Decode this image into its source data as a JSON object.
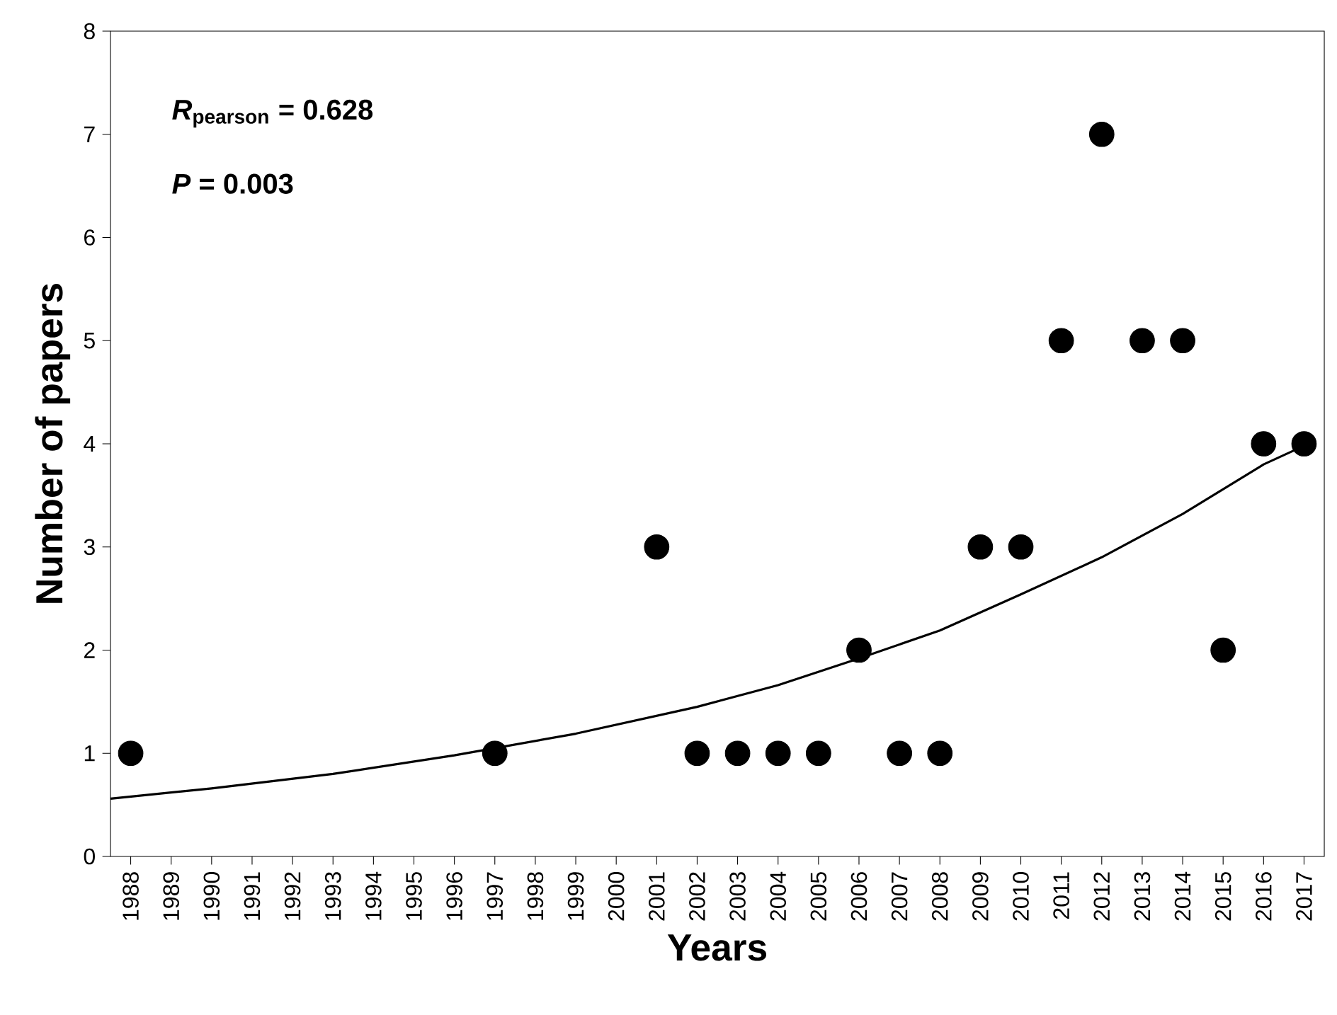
{
  "chart_data": {
    "type": "scatter",
    "xlabel": "Years",
    "ylabel": "Number of papers",
    "annotations": [
      "*R*$_{pearson}$ = 0.628",
      "*P* = 0.003"
    ],
    "xlim": [
      1987.5,
      2017.5
    ],
    "ylim": [
      0,
      8
    ],
    "xticks": [
      1988,
      1989,
      1990,
      1991,
      1992,
      1993,
      1994,
      1995,
      1996,
      1997,
      1998,
      1999,
      2000,
      2001,
      2002,
      2003,
      2004,
      2005,
      2006,
      2007,
      2008,
      2009,
      2010,
      2011,
      2012,
      2013,
      2014,
      2015,
      2016,
      2017
    ],
    "yticks": [
      0,
      1,
      2,
      3,
      4,
      5,
      6,
      7,
      8
    ],
    "series": [
      {
        "color": "#000000",
        "marker": "circle",
        "x": [
          1988,
          1997,
          2001,
          2002,
          2003,
          2004,
          2005,
          2006,
          2007,
          2008,
          2009,
          2010,
          2011,
          2012,
          2013,
          2014,
          2015,
          2016,
          2017
        ],
        "values": [
          1,
          1,
          3,
          1,
          1,
          1,
          1,
          2,
          1,
          1,
          3,
          3,
          5,
          7,
          5,
          5,
          2,
          4,
          4
        ]
      },
      {
        "type": "line",
        "color": "#000000",
        "marker": "none",
        "line_style": "solid",
        "x": [
          1987.5,
          1990,
          1993,
          1996,
          1999,
          2002,
          2004,
          2006,
          2008,
          2010,
          2012,
          2014,
          2016,
          2017
        ],
        "values": [
          0.56,
          0.66,
          0.8,
          0.98,
          1.19,
          1.45,
          1.66,
          1.92,
          2.19,
          2.54,
          2.9,
          3.32,
          3.8,
          3.98
        ]
      }
    ]
  }
}
